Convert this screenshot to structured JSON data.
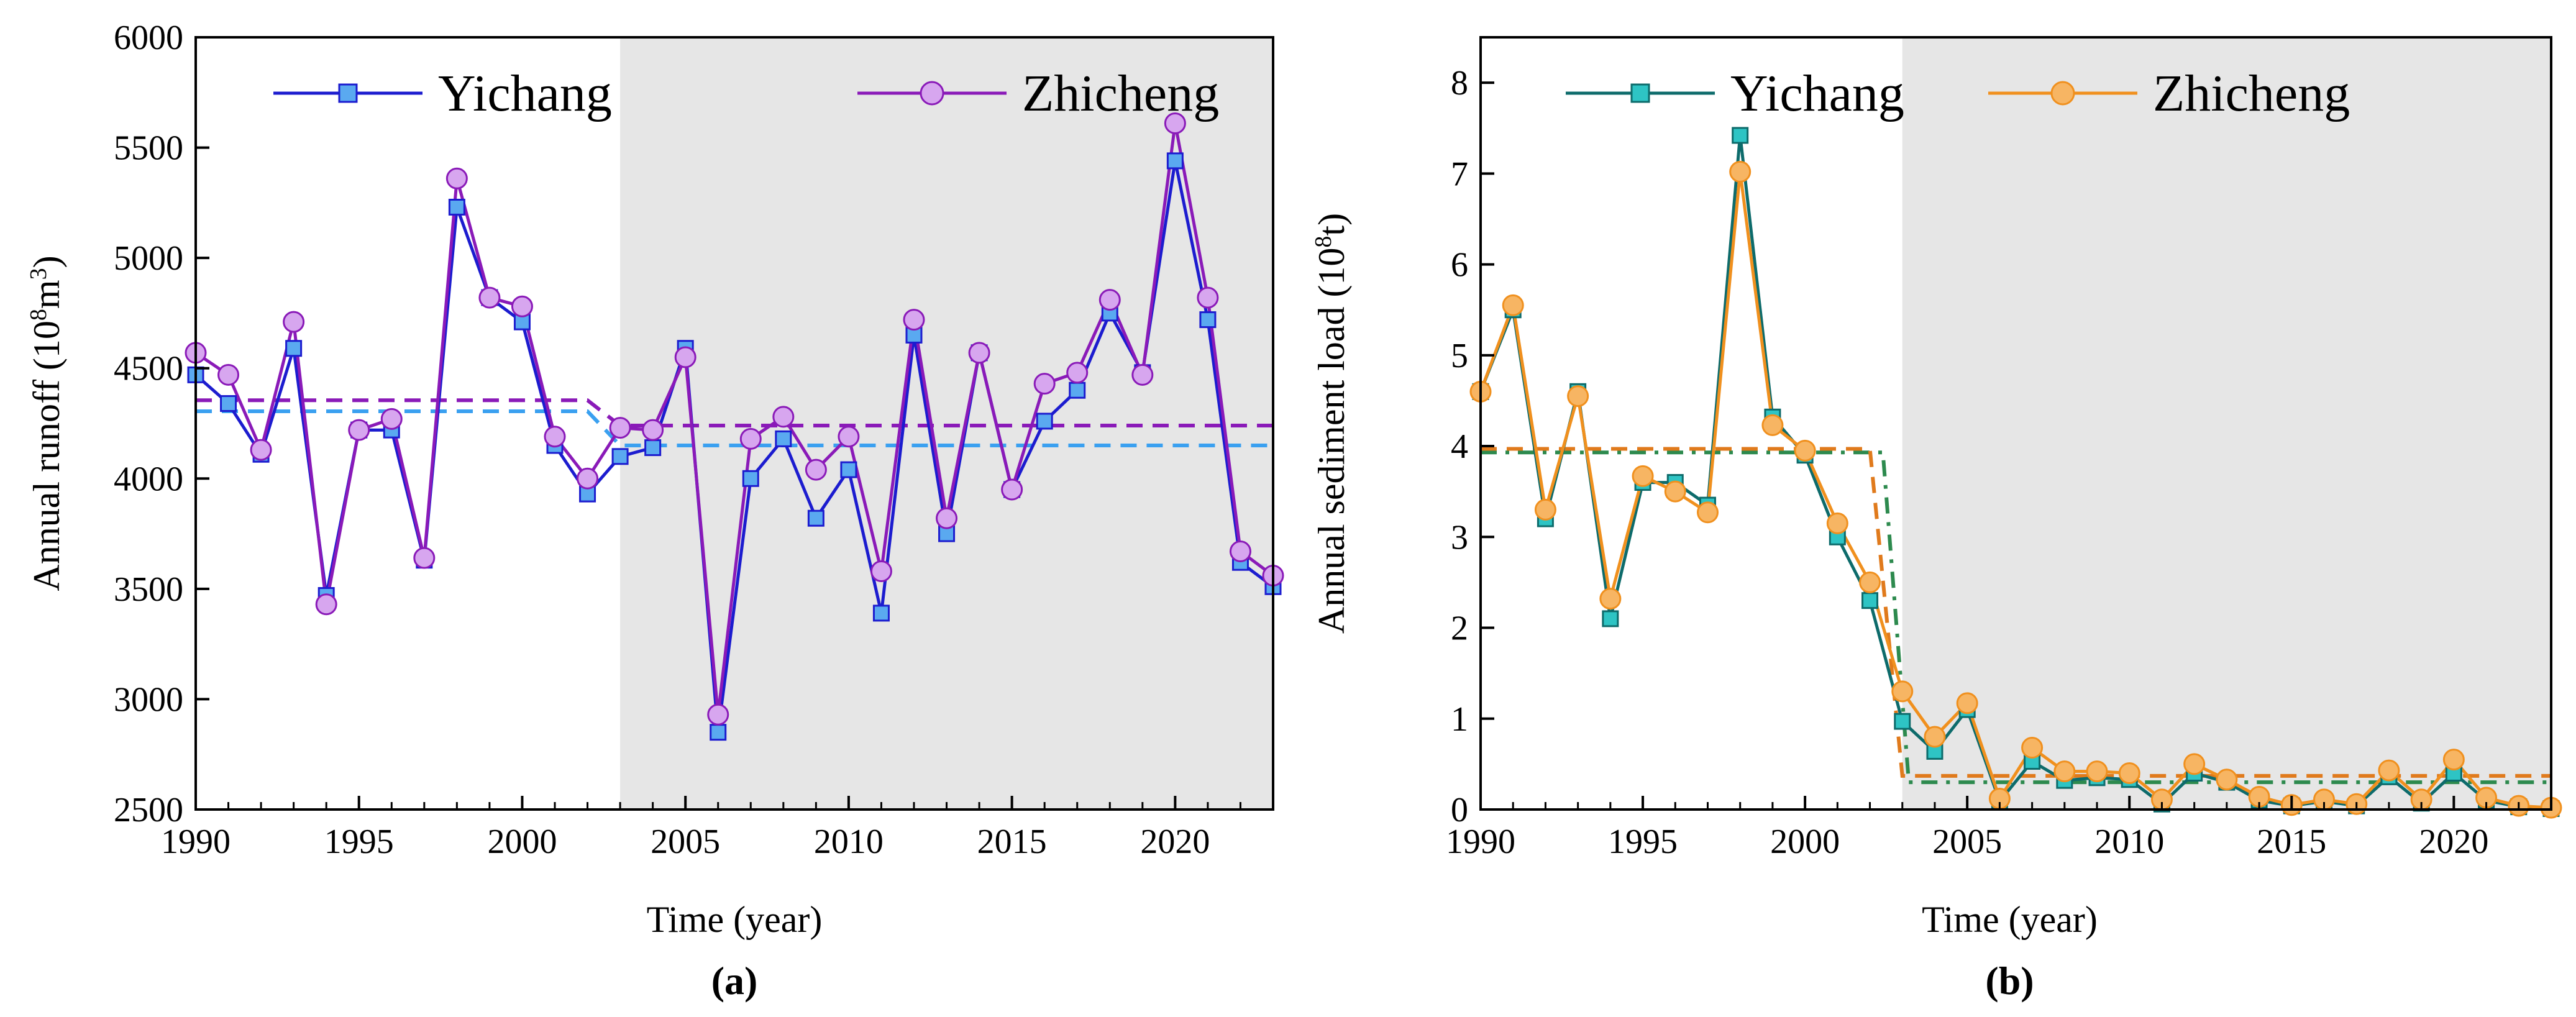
{
  "chart_data": [
    {
      "id": "a",
      "type": "line",
      "panel_label": "(a)",
      "xlabel": "Time (year)",
      "ylabel_html": "Annual runoff (10<tspan baseline-shift=\"super\" font-size=\"38\">8</tspan>m<tspan baseline-shift=\"super\" font-size=\"38\">3</tspan>)",
      "ylabel": "Annual runoff (10⁸m³)",
      "xlim": [
        1990,
        2023
      ],
      "ylim": [
        2500,
        6000
      ],
      "xticks": [
        1990,
        1995,
        2000,
        2005,
        2010,
        2015,
        2020
      ],
      "yticks": [
        2500,
        3000,
        3500,
        4000,
        4500,
        5000,
        5500,
        6000
      ],
      "shaded_from": 2003,
      "legend_position": "top",
      "x": [
        1990,
        1991,
        1992,
        1993,
        1994,
        1995,
        1996,
        1997,
        1998,
        1999,
        2000,
        2001,
        2002,
        2003,
        2004,
        2005,
        2006,
        2007,
        2008,
        2009,
        2010,
        2011,
        2012,
        2013,
        2014,
        2015,
        2016,
        2017,
        2018,
        2019,
        2020,
        2021,
        2022,
        2023
      ],
      "series": [
        {
          "name": "Yichang",
          "color": "#1c1ccf",
          "marker": "square",
          "marker_fill": "#5aa9f0",
          "values": [
            4470,
            4340,
            4110,
            4590,
            3470,
            4220,
            4220,
            3630,
            5230,
            4820,
            4710,
            4150,
            3930,
            4100,
            4140,
            4590,
            2850,
            4000,
            4180,
            3820,
            4040,
            3390,
            4650,
            3750,
            4570,
            3950,
            4260,
            4400,
            4750,
            4480,
            5440,
            4720,
            3620,
            3510
          ]
        },
        {
          "name": "Zhicheng",
          "color": "#8a1ab8",
          "marker": "circle",
          "marker_fill": "#d7a6ef",
          "values": [
            4570,
            4470,
            4130,
            4710,
            3430,
            4220,
            4270,
            3640,
            5360,
            4820,
            4780,
            4190,
            4000,
            4230,
            4220,
            4550,
            2930,
            4180,
            4280,
            4040,
            4190,
            3580,
            4720,
            3820,
            4570,
            3950,
            4430,
            4480,
            4810,
            4470,
            5610,
            4820,
            3670,
            3560
          ]
        }
      ],
      "mean_lines": [
        {
          "series": "Yichang",
          "color": "#3aa0f0",
          "before": {
            "x": [
              1990,
              2002
            ],
            "value": 4305
          },
          "after": {
            "x": [
              2003,
              2023
            ],
            "value": 4150
          }
        },
        {
          "series": "Zhicheng",
          "color": "#8a1ab8",
          "before": {
            "x": [
              1990,
              2002
            ],
            "value": 4355
          },
          "after": {
            "x": [
              2003,
              2023
            ],
            "value": 4240
          }
        }
      ]
    },
    {
      "id": "b",
      "type": "line",
      "panel_label": "(b)",
      "xlabel": "Time (year)",
      "ylabel_html": "Annual sediment load (10<tspan baseline-shift=\"super\" font-size=\"38\">8</tspan>t)",
      "ylabel": "Annual sediment load (10⁸t)",
      "xlim": [
        1990,
        2023
      ],
      "ylim": [
        0,
        8.5
      ],
      "xticks": [
        1990,
        1995,
        2000,
        2005,
        2010,
        2015,
        2020
      ],
      "yticks": [
        0,
        1,
        2,
        3,
        4,
        5,
        6,
        7,
        8
      ],
      "shaded_from": 2003,
      "legend_position": "top",
      "x": [
        1990,
        1991,
        1992,
        1993,
        1994,
        1995,
        1996,
        1997,
        1998,
        1999,
        2000,
        2001,
        2002,
        2003,
        2004,
        2005,
        2006,
        2007,
        2008,
        2009,
        2010,
        2011,
        2012,
        2013,
        2014,
        2015,
        2016,
        2017,
        2018,
        2019,
        2020,
        2021,
        2022,
        2023
      ],
      "series": [
        {
          "name": "Yichang",
          "color": "#0d6b6b",
          "marker": "square",
          "marker_fill": "#2ec4c4",
          "values": [
            4.6,
            5.5,
            3.2,
            4.6,
            2.1,
            3.6,
            3.6,
            3.35,
            7.42,
            4.32,
            3.9,
            3.0,
            2.3,
            0.97,
            0.64,
            1.1,
            0.09,
            0.53,
            0.32,
            0.35,
            0.33,
            0.06,
            0.4,
            0.3,
            0.1,
            0.04,
            0.09,
            0.04,
            0.36,
            0.07,
            0.4,
            0.1,
            0.03,
            0.01
          ]
        },
        {
          "name": "Zhicheng",
          "color": "#f0901e",
          "marker": "circle",
          "marker_fill": "#f7b563",
          "values": [
            4.6,
            5.55,
            3.3,
            4.55,
            2.32,
            3.67,
            3.5,
            3.27,
            7.02,
            4.23,
            3.95,
            3.15,
            2.5,
            1.3,
            0.8,
            1.17,
            0.12,
            0.68,
            0.42,
            0.42,
            0.4,
            0.11,
            0.5,
            0.33,
            0.14,
            0.05,
            0.11,
            0.06,
            0.43,
            0.11,
            0.55,
            0.13,
            0.04,
            0.02
          ]
        }
      ],
      "mean_lines": [
        {
          "series": "Yichang",
          "color": "#2d8a4e",
          "before": {
            "x": [
              1990,
              2002.4
            ],
            "value": 3.93
          },
          "after": {
            "x": [
              2003.2,
              2023
            ],
            "value": 0.3
          }
        },
        {
          "series": "Zhicheng",
          "color": "#e07a1c",
          "before": {
            "x": [
              1990,
              2002
            ],
            "value": 3.97
          },
          "after": {
            "x": [
              2003,
              2023
            ],
            "value": 0.37
          }
        }
      ]
    }
  ]
}
